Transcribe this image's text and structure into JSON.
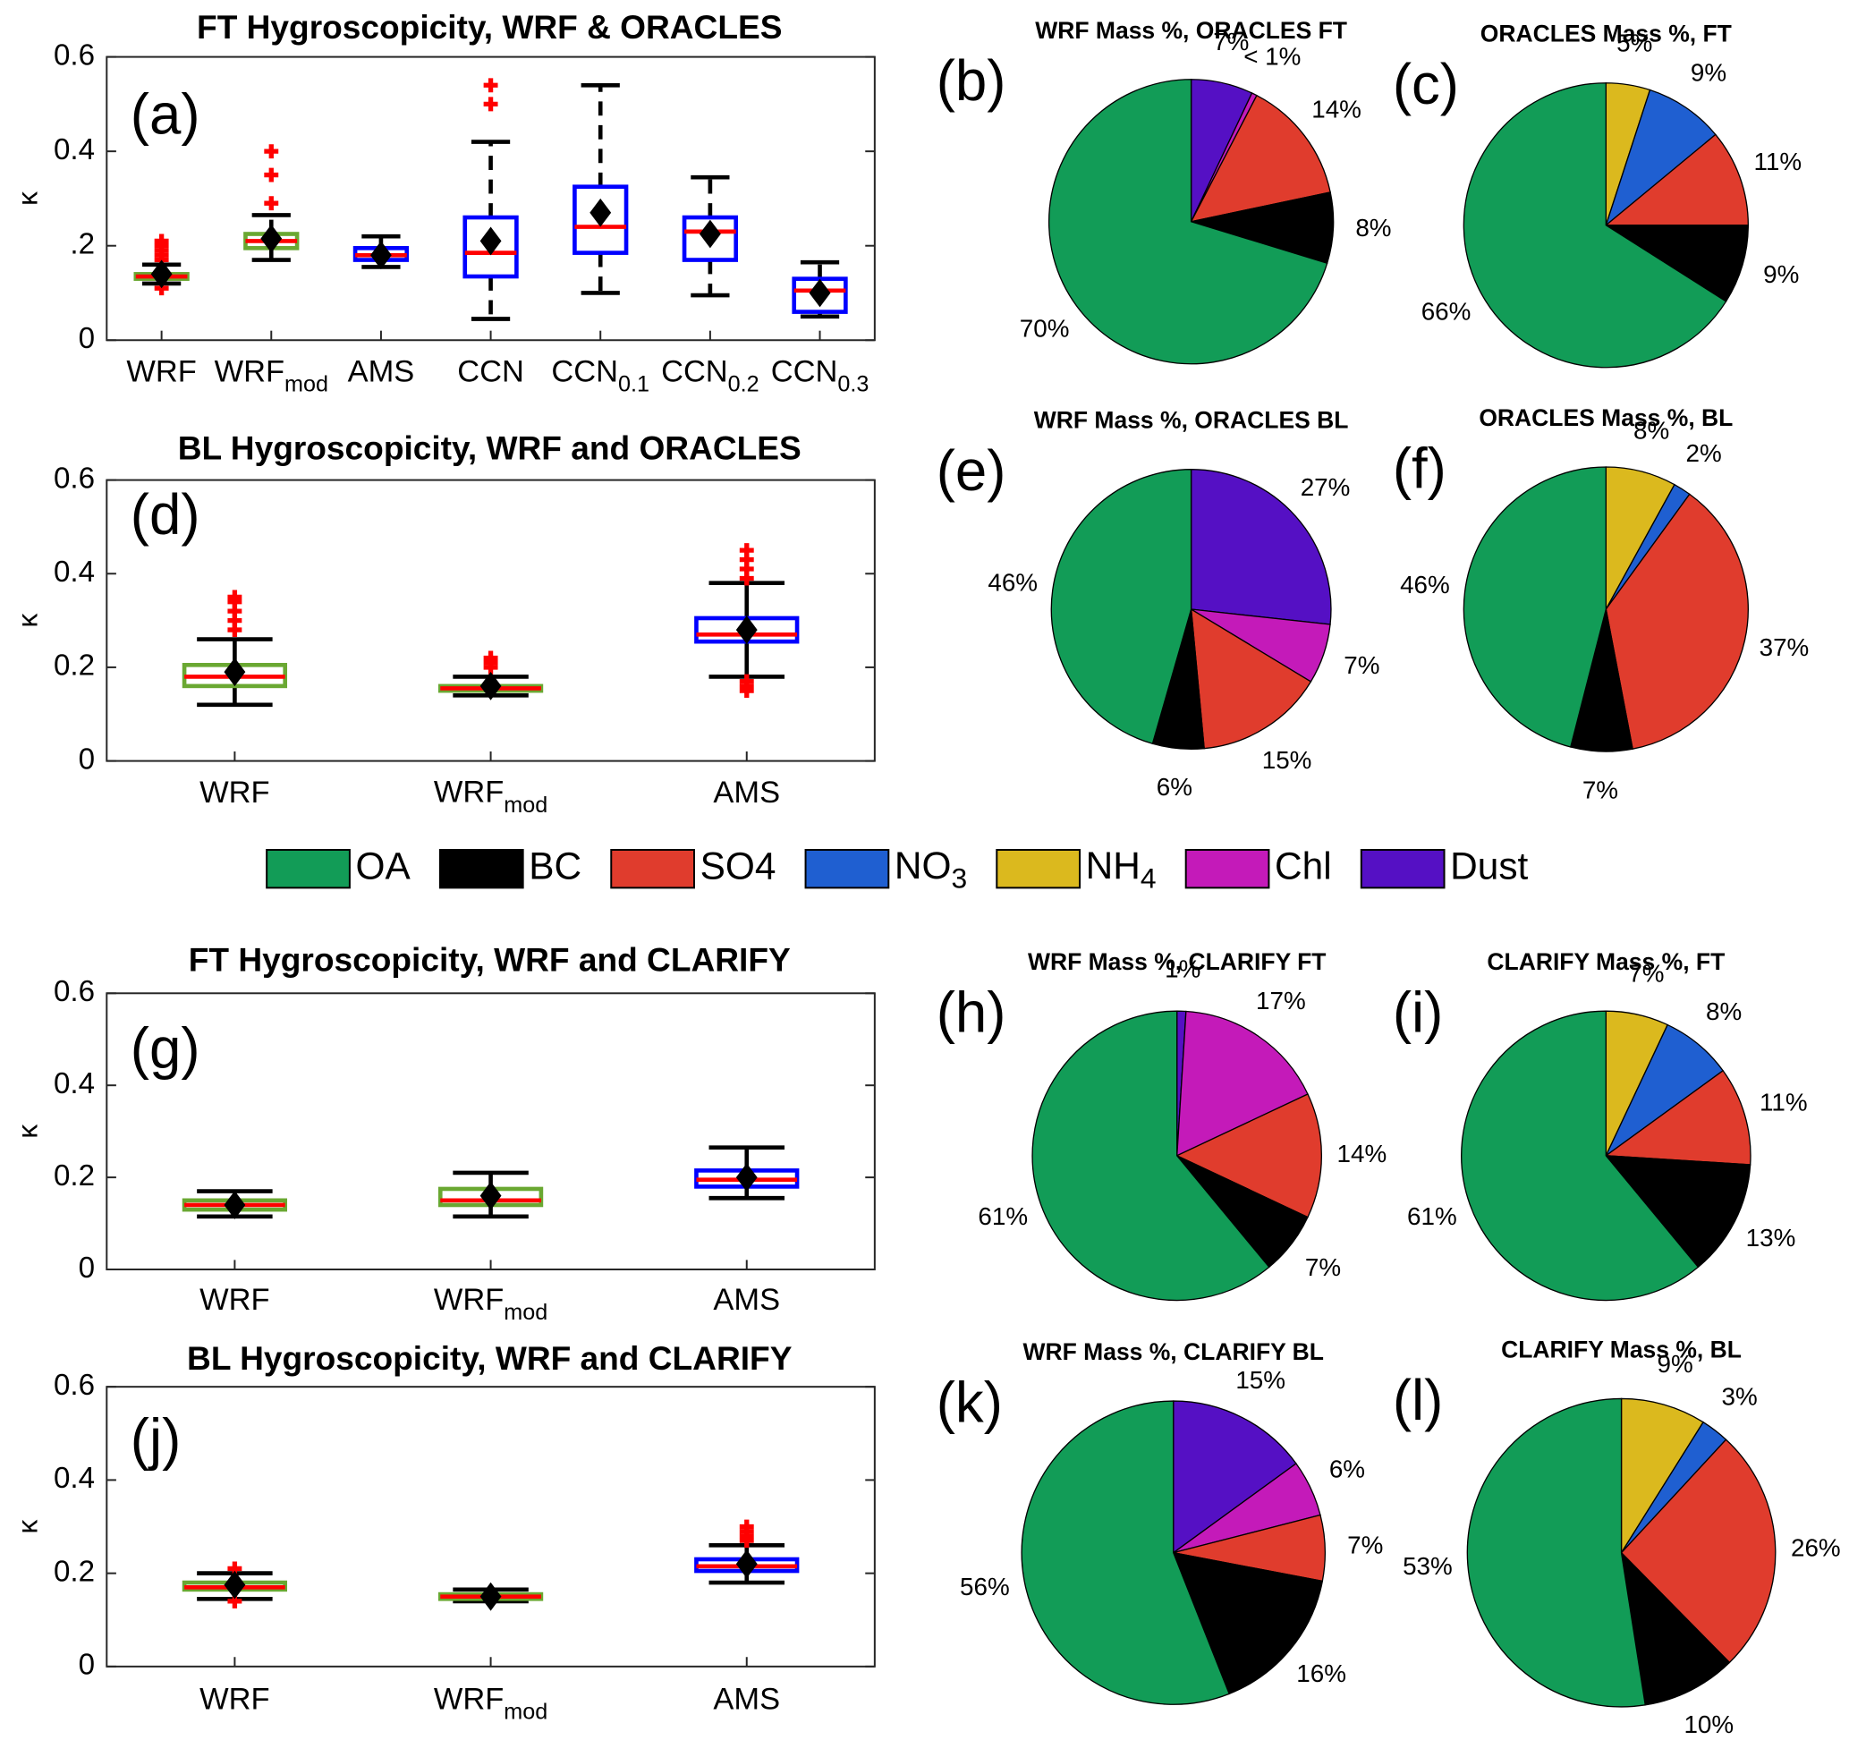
{
  "chart_data": [
    {
      "type": "box",
      "title": "FT Hygroscopicity, WRF & ORACLES",
      "panel_label": "(a)",
      "ylabel": "κ",
      "categories": [
        "WRF",
        {
          "text": "WRF",
          "sub": "mod"
        },
        "AMS",
        "CCN",
        {
          "text": "CCN",
          "sub": "0.1"
        },
        {
          "text": "CCN",
          "sub": "0.2"
        },
        {
          "text": "CCN",
          "sub": "0.3"
        }
      ],
      "ylim": [
        0,
        0.6
      ],
      "yticks": [
        0,
        {
          "value": 0.2,
          "label": ".2"
        },
        0.4,
        0.6
      ],
      "whisker_style": "dashed",
      "median_color": "#ff0000",
      "boxes": [
        {
          "whisker_low": 0.12,
          "q1": 0.13,
          "median": 0.135,
          "q3": 0.14,
          "whisker_high": 0.16,
          "mean": 0.14,
          "outliers": [
            0.11,
            0.17,
            0.18,
            0.19,
            0.2,
            0.21
          ],
          "edge_color": "#6aa832"
        },
        {
          "whisker_low": 0.17,
          "q1": 0.195,
          "median": 0.21,
          "q3": 0.225,
          "whisker_high": 0.265,
          "mean": 0.215,
          "outliers": [
            0.29,
            0.35,
            0.4
          ],
          "edge_color": "#6aa832"
        },
        {
          "whisker_low": 0.155,
          "q1": 0.17,
          "median": 0.18,
          "q3": 0.195,
          "whisker_high": 0.22,
          "mean": 0.18,
          "outliers": [],
          "edge_color": "#0000ff"
        },
        {
          "whisker_low": 0.045,
          "q1": 0.135,
          "median": 0.185,
          "q3": 0.26,
          "whisker_high": 0.42,
          "mean": 0.21,
          "outliers": [
            0.5,
            0.54
          ],
          "edge_color": "#0000ff"
        },
        {
          "whisker_low": 0.1,
          "q1": 0.185,
          "median": 0.24,
          "q3": 0.325,
          "whisker_high": 0.54,
          "mean": 0.27,
          "outliers": [],
          "edge_color": "#0000ff"
        },
        {
          "whisker_low": 0.095,
          "q1": 0.17,
          "median": 0.23,
          "q3": 0.26,
          "whisker_high": 0.345,
          "mean": 0.225,
          "outliers": [],
          "edge_color": "#0000ff"
        },
        {
          "whisker_low": 0.05,
          "q1": 0.06,
          "median": 0.105,
          "q3": 0.13,
          "whisker_high": 0.165,
          "mean": 0.1,
          "outliers": [],
          "edge_color": "#0000ff"
        }
      ]
    },
    {
      "type": "pie",
      "title": "WRF Mass %, ORACLES FT",
      "panel_label": "(b)",
      "values": [
        7,
        0.6,
        14,
        8,
        70
      ],
      "value_labels": [
        "7%",
        "< 1%",
        "14%",
        "8%",
        "70%"
      ],
      "colors": [
        "#5510c4",
        "#c41ab9",
        "#e03c2d",
        "#000000",
        "#129c57"
      ]
    },
    {
      "type": "pie",
      "title": "ORACLES Mass %, FT",
      "panel_label": "(c)",
      "values": [
        5,
        9,
        11,
        9,
        66
      ],
      "value_labels": [
        "5%",
        "9%",
        "11%",
        "9%",
        "66%"
      ],
      "colors": [
        "#dbb91e",
        "#1f5fd1",
        "#e03c2d",
        "#000000",
        "#129c57"
      ]
    },
    {
      "type": "box",
      "title": "BL Hygroscopicity, WRF and ORACLES",
      "panel_label": "(d)",
      "ylabel": "κ",
      "categories": [
        "WRF",
        {
          "text": "WRF",
          "sub": "mod"
        },
        "AMS"
      ],
      "ylim": [
        0,
        0.6
      ],
      "yticks": [
        0,
        0.2,
        0.4,
        0.6
      ],
      "whisker_style": "solid",
      "median_color": "#ff0000",
      "boxes": [
        {
          "whisker_low": 0.12,
          "q1": 0.16,
          "median": 0.18,
          "q3": 0.205,
          "whisker_high": 0.26,
          "mean": 0.19,
          "outliers": [
            0.28,
            0.3,
            0.32,
            0.34,
            0.35
          ],
          "edge_color": "#6aa832"
        },
        {
          "whisker_low": 0.14,
          "q1": 0.15,
          "median": 0.155,
          "q3": 0.16,
          "whisker_high": 0.18,
          "mean": 0.16,
          "outliers": [
            0.2,
            0.21,
            0.22
          ],
          "edge_color": "#6aa832"
        },
        {
          "whisker_low": 0.18,
          "q1": 0.255,
          "median": 0.27,
          "q3": 0.305,
          "whisker_high": 0.38,
          "mean": 0.28,
          "outliers": [
            0.15,
            0.16,
            0.17,
            0.39,
            0.41,
            0.43,
            0.45
          ],
          "edge_color": "#0000ff"
        }
      ]
    },
    {
      "type": "pie",
      "title": "WRF Mass %, ORACLES BL",
      "panel_label": "(e)",
      "values": [
        27,
        7,
        15,
        6,
        46
      ],
      "value_labels": [
        "27%",
        "7%",
        "15%",
        "6%",
        "46%"
      ],
      "colors": [
        "#5510c4",
        "#c41ab9",
        "#e03c2d",
        "#000000",
        "#129c57"
      ]
    },
    {
      "type": "pie",
      "title": "ORACLES Mass %, BL",
      "panel_label": "(f)",
      "values": [
        8,
        2,
        37,
        7,
        46
      ],
      "value_labels": [
        "8%",
        "2%",
        "37%",
        "7%",
        "46%"
      ],
      "colors": [
        "#dbb91e",
        "#1f5fd1",
        "#e03c2d",
        "#000000",
        "#129c57"
      ]
    },
    {
      "type": "box",
      "title": "FT Hygroscopicity, WRF and CLARIFY",
      "panel_label": "(g)",
      "ylabel": "κ",
      "categories": [
        "WRF",
        {
          "text": "WRF",
          "sub": "mod"
        },
        "AMS"
      ],
      "ylim": [
        0,
        0.6
      ],
      "yticks": [
        0,
        0.2,
        0.4,
        0.6
      ],
      "whisker_style": "solid",
      "median_color": "#ff0000",
      "boxes": [
        {
          "whisker_low": 0.115,
          "q1": 0.13,
          "median": 0.14,
          "q3": 0.15,
          "whisker_high": 0.17,
          "mean": 0.14,
          "outliers": [],
          "edge_color": "#6aa832"
        },
        {
          "whisker_low": 0.115,
          "q1": 0.14,
          "median": 0.15,
          "q3": 0.175,
          "whisker_high": 0.21,
          "mean": 0.16,
          "outliers": [],
          "edge_color": "#6aa832"
        },
        {
          "whisker_low": 0.155,
          "q1": 0.18,
          "median": 0.195,
          "q3": 0.215,
          "whisker_high": 0.265,
          "mean": 0.2,
          "outliers": [],
          "edge_color": "#0000ff"
        }
      ]
    },
    {
      "type": "pie",
      "title": "WRF Mass %, CLARIFY FT",
      "panel_label": "(h)",
      "values": [
        1,
        17,
        14,
        7,
        61
      ],
      "value_labels": [
        "1%",
        "17%",
        "14%",
        "7%",
        "61%"
      ],
      "colors": [
        "#5510c4",
        "#c41ab9",
        "#e03c2d",
        "#000000",
        "#129c57"
      ]
    },
    {
      "type": "pie",
      "title": "CLARIFY Mass %, FT",
      "panel_label": "(i)",
      "values": [
        7,
        8,
        11,
        13,
        61
      ],
      "value_labels": [
        "7%",
        "8%",
        "11%",
        "13%",
        "61%"
      ],
      "colors": [
        "#dbb91e",
        "#1f5fd1",
        "#e03c2d",
        "#000000",
        "#129c57"
      ]
    },
    {
      "type": "box",
      "title": "BL Hygroscopicity, WRF and CLARIFY",
      "panel_label": "(j)",
      "ylabel": "κ",
      "categories": [
        "WRF",
        {
          "text": "WRF",
          "sub": "mod"
        },
        "AMS"
      ],
      "ylim": [
        0,
        0.6
      ],
      "yticks": [
        0,
        0.2,
        0.4,
        0.6
      ],
      "whisker_style": "solid",
      "median_color": "#ff0000",
      "boxes": [
        {
          "whisker_low": 0.145,
          "q1": 0.165,
          "median": 0.17,
          "q3": 0.18,
          "whisker_high": 0.2,
          "mean": 0.175,
          "outliers": [
            0.14,
            0.21
          ],
          "edge_color": "#6aa832"
        },
        {
          "whisker_low": 0.14,
          "q1": 0.145,
          "median": 0.15,
          "q3": 0.155,
          "whisker_high": 0.165,
          "mean": 0.15,
          "outliers": [],
          "edge_color": "#6aa832"
        },
        {
          "whisker_low": 0.18,
          "q1": 0.205,
          "median": 0.215,
          "q3": 0.23,
          "whisker_high": 0.26,
          "mean": 0.22,
          "outliers": [
            0.27,
            0.28,
            0.29,
            0.3
          ],
          "edge_color": "#0000ff"
        }
      ]
    },
    {
      "type": "pie",
      "title": "WRF Mass %, CLARIFY BL",
      "panel_label": "(k)",
      "values": [
        15,
        6,
        7,
        16,
        56
      ],
      "value_labels": [
        "15%",
        "6%",
        "7%",
        "16%",
        "56%"
      ],
      "colors": [
        "#5510c4",
        "#c41ab9",
        "#e03c2d",
        "#000000",
        "#129c57"
      ]
    },
    {
      "type": "pie",
      "title": "CLARIFY Mass %, BL",
      "panel_label": "(l)",
      "values": [
        9,
        3,
        26,
        10,
        53
      ],
      "value_labels": [
        "9%",
        "3%",
        "26%",
        "10%",
        "53%"
      ],
      "colors": [
        "#dbb91e",
        "#1f5fd1",
        "#e03c2d",
        "#000000",
        "#129c57"
      ]
    }
  ],
  "legend": {
    "items": [
      {
        "name": "OA",
        "color": "#129c57"
      },
      {
        "name": "BC",
        "color": "#000000"
      },
      {
        "name": "SO4",
        "color": "#e03c2d"
      },
      {
        "name": {
          "text": "NO",
          "sub": "3"
        },
        "color": "#1f5fd1"
      },
      {
        "name": {
          "text": "NH",
          "sub": "4"
        },
        "color": "#dbb91e"
      },
      {
        "name": "Chl",
        "color": "#c41ab9"
      },
      {
        "name": "Dust",
        "color": "#5510c4"
      }
    ]
  }
}
